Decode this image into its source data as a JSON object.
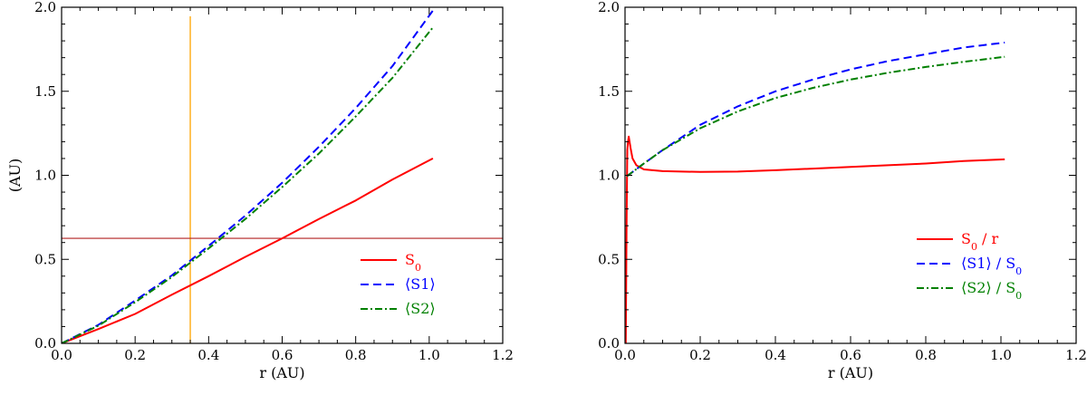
{
  "chart_data": [
    {
      "type": "line",
      "id": "left",
      "xlabel": "r (AU)",
      "ylabel": "(AU)",
      "xlim": [
        0,
        1.2
      ],
      "ylim": [
        0,
        2.0
      ],
      "xticks": [
        "0.0",
        "0.2",
        "0.4",
        "0.6",
        "0.8",
        "1.0",
        "1.2"
      ],
      "yticks": [
        "0.0",
        "0.5",
        "1.0",
        "1.5",
        "2.0"
      ],
      "legend_position": "bottom-right",
      "reference_lines": [
        {
          "orientation": "vertical",
          "value": 0.35,
          "color": "#ffa500"
        },
        {
          "orientation": "horizontal",
          "value": 0.625,
          "color": "#b22222"
        }
      ],
      "series": [
        {
          "name": "S0",
          "label": "S",
          "label_sub": "0",
          "color": "#ff0000",
          "dash": "solid",
          "x": [
            0,
            0.1,
            0.2,
            0.3,
            0.4,
            0.5,
            0.6,
            0.7,
            0.8,
            0.9,
            1.01
          ],
          "y": [
            0,
            0.085,
            0.175,
            0.29,
            0.4,
            0.515,
            0.625,
            0.74,
            0.85,
            0.975,
            1.1
          ]
        },
        {
          "name": "<S1>",
          "label": "⟨S1⟩",
          "label_sub": "",
          "color": "#0000ff",
          "dash": "dashed",
          "x": [
            0,
            0.1,
            0.2,
            0.3,
            0.4,
            0.5,
            0.6,
            0.7,
            0.8,
            0.9,
            1.01
          ],
          "y": [
            0,
            0.11,
            0.255,
            0.405,
            0.58,
            0.76,
            0.955,
            1.17,
            1.4,
            1.65,
            1.98
          ]
        },
        {
          "name": "<S2>",
          "label": "⟨S2⟩",
          "label_sub": "",
          "color": "#008000",
          "dash": "dashdot",
          "x": [
            0,
            0.1,
            0.2,
            0.3,
            0.4,
            0.5,
            0.6,
            0.7,
            0.8,
            0.9,
            1.01
          ],
          "y": [
            0,
            0.105,
            0.245,
            0.395,
            0.565,
            0.74,
            0.93,
            1.13,
            1.35,
            1.58,
            1.88
          ]
        }
      ]
    },
    {
      "type": "line",
      "id": "right",
      "xlabel": "r (AU)",
      "ylabel": "",
      "xlim": [
        0,
        1.2
      ],
      "ylim": [
        0,
        2.0
      ],
      "xticks": [
        "0.0",
        "0.2",
        "0.4",
        "0.6",
        "0.8",
        "1.0",
        "1.2"
      ],
      "yticks": [
        "0.0",
        "0.5",
        "1.0",
        "1.5",
        "2.0"
      ],
      "legend_position": "bottom-right",
      "reference_lines": [],
      "series": [
        {
          "name": "S0/r",
          "label": "S",
          "label_sub": "0",
          "label_suffix": " / r",
          "color": "#ff0000",
          "dash": "solid",
          "x": [
            0.002,
            0.004,
            0.006,
            0.008,
            0.01,
            0.015,
            0.02,
            0.03,
            0.05,
            0.1,
            0.2,
            0.3,
            0.4,
            0.5,
            0.6,
            0.7,
            0.8,
            0.9,
            1.01
          ],
          "y": [
            0.0,
            0.7,
            1.15,
            1.2,
            1.23,
            1.16,
            1.1,
            1.06,
            1.035,
            1.025,
            1.02,
            1.022,
            1.03,
            1.04,
            1.05,
            1.06,
            1.07,
            1.085,
            1.095
          ]
        },
        {
          "name": "<S1>/S0",
          "label": "⟨S1⟩ / S",
          "label_sub": "0",
          "label_suffix": "",
          "color": "#0000ff",
          "dash": "dashed",
          "x": [
            0.005,
            0.05,
            0.1,
            0.2,
            0.3,
            0.4,
            0.5,
            0.6,
            0.7,
            0.8,
            0.9,
            1.01
          ],
          "y": [
            0.995,
            1.07,
            1.15,
            1.3,
            1.41,
            1.5,
            1.57,
            1.63,
            1.68,
            1.72,
            1.76,
            1.79
          ]
        },
        {
          "name": "<S2>/S0",
          "label": "⟨S2⟩ / S",
          "label_sub": "0",
          "label_suffix": "",
          "color": "#008000",
          "dash": "dashdot",
          "x": [
            0.005,
            0.05,
            0.1,
            0.2,
            0.3,
            0.4,
            0.5,
            0.6,
            0.7,
            0.8,
            0.9,
            1.01
          ],
          "y": [
            0.995,
            1.07,
            1.15,
            1.28,
            1.38,
            1.46,
            1.52,
            1.57,
            1.61,
            1.645,
            1.675,
            1.705
          ]
        }
      ]
    }
  ]
}
